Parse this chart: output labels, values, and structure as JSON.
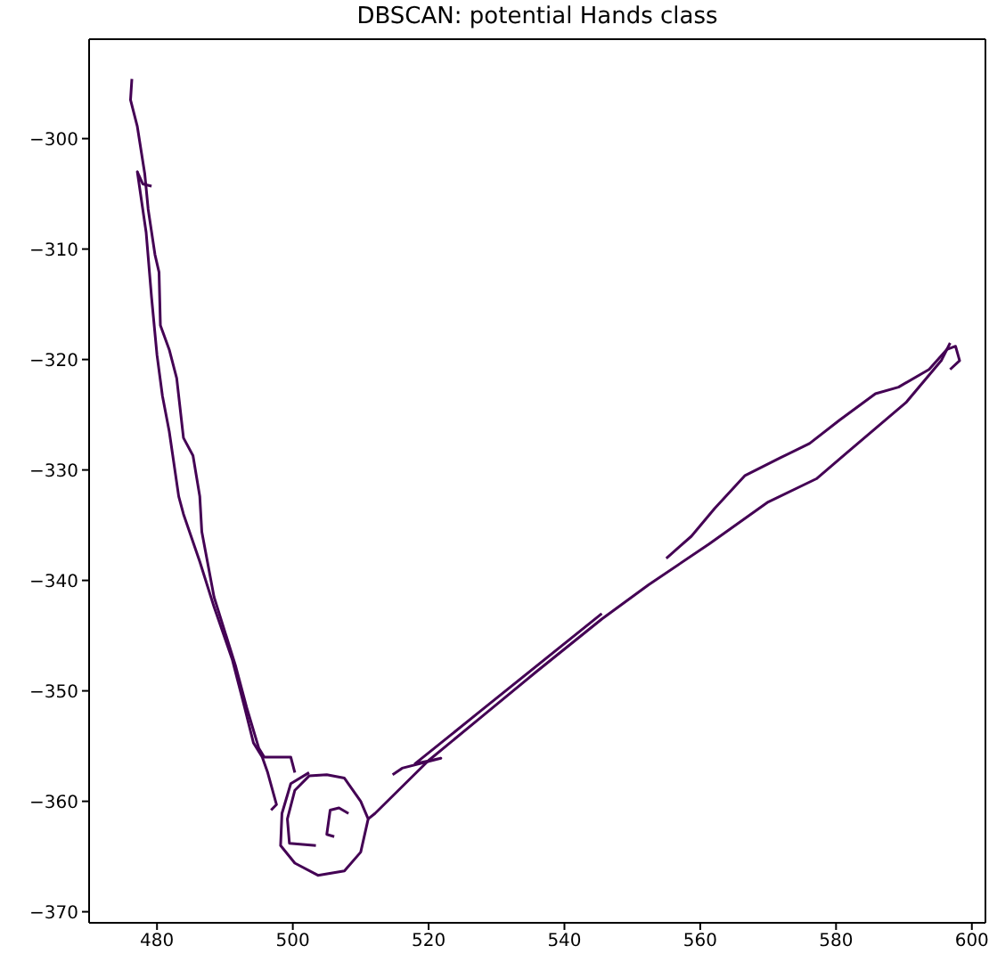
{
  "chart_data": {
    "type": "line",
    "title": "DBSCAN: potential Hands class",
    "xlim": [
      470,
      602
    ],
    "xticks": [
      480,
      500,
      520,
      540,
      560,
      580,
      600
    ],
    "ylim": [
      -371,
      -291
    ],
    "yticks": [
      -300,
      -310,
      -320,
      -330,
      -340,
      -350,
      -360,
      -370
    ],
    "grid": false,
    "marker": "none",
    "line_style": "solid",
    "series": [
      {
        "color": "#440154",
        "x": [
          476.3,
          476.1,
          477.1,
          478.2,
          478.7,
          479.7,
          480.3,
          480.5,
          481.8,
          482.9,
          483.9,
          485.3,
          486.3,
          486.6,
          488.4,
          491.6,
          493.2,
          495.0,
          495.8,
          499.7,
          500.3
        ],
        "values": [
          -294.6,
          -296.5,
          -298.9,
          -303.2,
          -306.4,
          -310.5,
          -312.1,
          -316.9,
          -319.1,
          -321.7,
          -327.1,
          -328.7,
          -332.4,
          -335.6,
          -341.5,
          -347.8,
          -351.5,
          -355.2,
          -356.0,
          -356.0,
          -357.4
        ]
      },
      {
        "color": "#440154",
        "x": [
          479.2,
          477.9,
          477.1,
          478.4,
          479.2,
          480.0,
          480.8,
          481.8,
          483.2,
          483.9,
          486.3,
          488.4,
          491.1,
          492.9,
          494.2,
          495.5,
          496.3,
          497.6,
          496.8
        ],
        "values": [
          -304.3,
          -304.1,
          -303.0,
          -308.5,
          -314.4,
          -319.6,
          -323.3,
          -326.5,
          -332.4,
          -334.0,
          -338.3,
          -342.4,
          -347.2,
          -351.5,
          -354.7,
          -356.0,
          -357.4,
          -360.3,
          -360.8
        ]
      },
      {
        "color": "#440154",
        "x": [
          502.4,
          499.7,
          498.4,
          498.2,
          500.3,
          503.7,
          507.6,
          510.0,
          511.1,
          510.0,
          507.6,
          505.0,
          502.4,
          500.3,
          499.2,
          499.5,
          503.4
        ],
        "values": [
          -357.4,
          -358.4,
          -361.1,
          -364.0,
          -365.6,
          -366.7,
          -366.3,
          -364.6,
          -361.6,
          -360.0,
          -357.9,
          -357.6,
          -357.7,
          -359.0,
          -361.6,
          -363.8,
          -364.0
        ]
      },
      {
        "color": "#440154",
        "x": [
          508.2,
          506.8,
          505.5,
          505.0,
          506.1
        ],
        "values": [
          -361.1,
          -360.6,
          -360.8,
          -363.0,
          -363.2
        ]
      },
      {
        "color": "#440154",
        "x": [
          511.1,
          512.1,
          520.0,
          527.9,
          535.8,
          545.5,
          552.4,
          561.3,
          570.0,
          577.1,
          583.2,
          590.3,
          595.5,
          596.8
        ],
        "values": [
          -361.6,
          -361.1,
          -356.3,
          -352.3,
          -348.3,
          -343.5,
          -340.4,
          -336.7,
          -332.9,
          -330.8,
          -327.6,
          -323.9,
          -320.1,
          -318.5
        ]
      },
      {
        "color": "#440154",
        "x": [
          555.0,
          558.7,
          562.1,
          566.6,
          571.8,
          576.1,
          580.5,
          585.8,
          589.2,
          593.7,
          596.3,
          597.6,
          598.2,
          596.8
        ],
        "values": [
          -338.0,
          -336.0,
          -333.5,
          -330.5,
          -328.9,
          -327.6,
          -325.5,
          -323.1,
          -322.5,
          -320.9,
          -319.1,
          -318.8,
          -320.1,
          -320.9
        ]
      },
      {
        "color": "#440154",
        "x": [
          514.7,
          516.1,
          521.8,
          518.0,
          527.9,
          545.5
        ],
        "values": [
          -357.6,
          -357.0,
          -356.1,
          -356.6,
          -351.7,
          -343.0
        ]
      }
    ]
  }
}
